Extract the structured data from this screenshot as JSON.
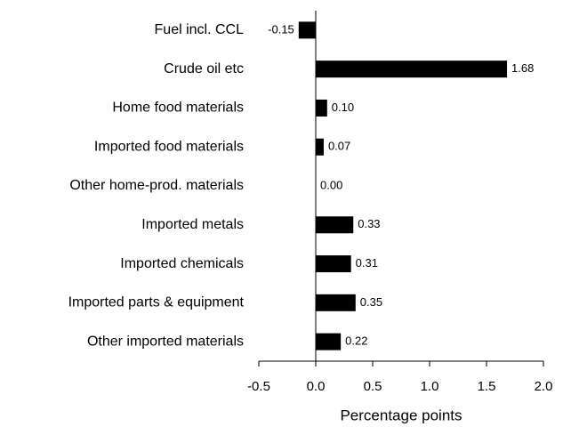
{
  "chart_data": {
    "type": "bar",
    "orientation": "horizontal",
    "categories": [
      "Fuel incl. CCL",
      "Crude oil etc",
      "Home food materials",
      "Imported food materials",
      "Other home-prod. materials",
      "Imported metals",
      "Imported chemicals",
      "Imported parts & equipment",
      "Other imported materials"
    ],
    "values": [
      -0.15,
      1.68,
      0.1,
      0.07,
      0.0,
      0.33,
      0.31,
      0.35,
      0.22
    ],
    "value_labels": [
      "-0.15",
      "1.68",
      "0.10",
      "0.07",
      "0.00",
      "0.33",
      "0.31",
      "0.35",
      "0.22"
    ],
    "color": "#000000",
    "xlabel": "Percentage points",
    "xlim": [
      -0.5,
      2.0
    ],
    "xticks": [
      -0.5,
      {
        "value": 0,
        "label": "0.0"
      },
      0.5,
      {
        "value": 1,
        "label": "1.0"
      },
      1.5,
      {
        "value": 2,
        "label": "2.0"
      }
    ],
    "grid": false
  }
}
